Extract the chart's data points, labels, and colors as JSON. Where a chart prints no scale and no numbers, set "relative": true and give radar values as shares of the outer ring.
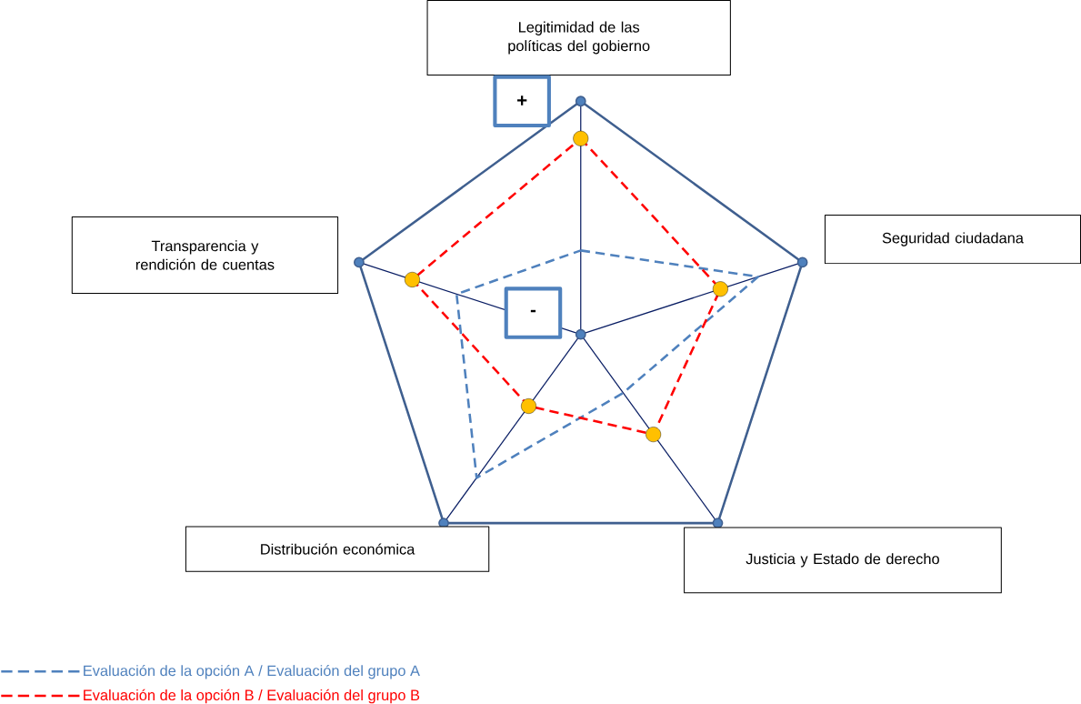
{
  "chart_data": {
    "type": "radar",
    "relative": true,
    "categories": [
      "Legitimidad de las políticas del gobierno",
      "Seguridad ciudadana",
      "Justicia y Estado de derecho",
      "Distribución económica",
      "Transparencia y rendición de cuentas"
    ],
    "series": [
      {
        "name": "Evaluación de la opción A / Evaluación del grupo A",
        "color": "#4f81bd",
        "line_style": "dashed",
        "marker": "none",
        "values": [
          0.36,
          0.8,
          0.31,
          0.76,
          0.56
        ]
      },
      {
        "name": "Evaluación de la opción B / Evaluación del grupo B",
        "color": "#ff0000",
        "line_style": "dashed",
        "marker": "circle",
        "values": [
          0.84,
          0.63,
          0.53,
          0.38,
          0.76
        ]
      }
    ],
    "annotations": [
      "+",
      "-"
    ],
    "legend": "bottom left"
  }
}
